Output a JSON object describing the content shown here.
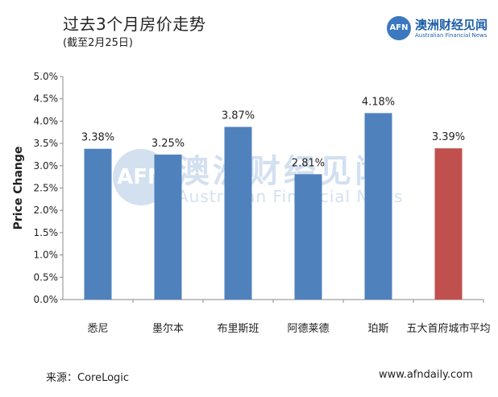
{
  "header": {
    "title": "过去3个月房价走势",
    "subtitle": "(截至2月25日)"
  },
  "logo": {
    "mark": "AFN",
    "name_cn": "澳洲财经见闻",
    "name_en": "Australian Financial News"
  },
  "watermark": {
    "mark": "AFN",
    "name_cn": "澳洲财经见闻",
    "name_en": "Australian Financial News"
  },
  "footer": {
    "source": "来源：CoreLogic",
    "website": "www.afndaily.com"
  },
  "colors": {
    "bar_blue": "#4f81bd",
    "bar_red": "#c0504d",
    "axis": "#888888",
    "brand": "#1f5fa8"
  },
  "chart_data": {
    "type": "bar",
    "title": "过去3个月房价走势",
    "ylabel": "Price Change",
    "xlabel": "",
    "ylim": [
      0,
      5
    ],
    "yticks": [
      "0.0%",
      "0.5%",
      "1.0%",
      "1.5%",
      "2.0%",
      "2.5%",
      "3.0%",
      "3.5%",
      "4.0%",
      "4.5%",
      "5.0%"
    ],
    "categories": [
      "悉尼",
      "墨尔本",
      "布里斯班",
      "阿德莱德",
      "珀斯",
      "五大首府城市平均"
    ],
    "values": [
      3.38,
      3.25,
      3.87,
      2.81,
      4.18,
      3.39
    ],
    "value_labels": [
      "3.38%",
      "3.25%",
      "3.87%",
      "2.81%",
      "4.18%",
      "3.39%"
    ],
    "bar_colors": [
      "#4f81bd",
      "#4f81bd",
      "#4f81bd",
      "#4f81bd",
      "#4f81bd",
      "#c0504d"
    ],
    "grid": false,
    "legend": "none"
  }
}
